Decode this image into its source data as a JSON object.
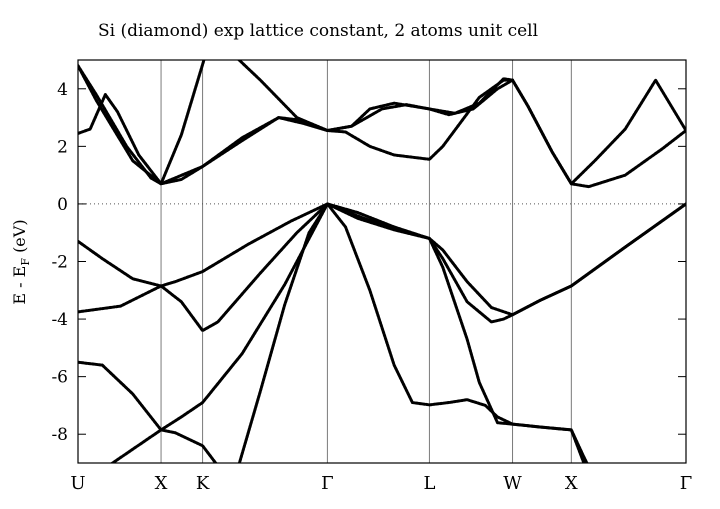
{
  "chart_data": {
    "type": "line",
    "title": "Si (diamond) exp lattice constant, 2 atoms unit cell",
    "ylabel": {
      "main": "E - E",
      "sub": "F",
      "unit": " (eV)"
    },
    "ylim": [
      -9,
      5
    ],
    "yticks": [
      4,
      2,
      0,
      -2,
      -4,
      -6,
      -8
    ],
    "x_range": [
      0,
      1
    ],
    "grid": false,
    "fermi_level": 0,
    "kpoints": [
      {
        "label": "U",
        "x": 0.0
      },
      {
        "label": "X",
        "x": 0.1366
      },
      {
        "label": "K",
        "x": 0.2049
      },
      {
        "label": "Γ",
        "x": 0.4102
      },
      {
        "label": "L",
        "x": 0.578
      },
      {
        "label": "W",
        "x": 0.7147
      },
      {
        "label": "X",
        "x": 0.8114
      },
      {
        "label": "Γ",
        "x": 1.0
      }
    ],
    "series": [
      {
        "values": [
          [
            0.0,
            -9.4
          ],
          [
            0.05,
            -9.1
          ],
          [
            0.1366,
            -7.85
          ],
          [
            0.17,
            -7.4
          ],
          [
            0.2049,
            -6.9
          ],
          [
            0.27,
            -5.2
          ],
          [
            0.34,
            -2.8
          ],
          [
            0.4102,
            0.0
          ],
          [
            0.46,
            -0.5
          ],
          [
            0.52,
            -0.9
          ],
          [
            0.578,
            -1.2
          ],
          [
            0.6,
            -1.6
          ],
          [
            0.64,
            -2.7
          ],
          [
            0.68,
            -3.6
          ],
          [
            0.7147,
            -3.85
          ],
          [
            0.76,
            -3.35
          ],
          [
            0.8114,
            -2.85
          ],
          [
            0.9,
            -1.5
          ],
          [
            1.0,
            0.0
          ]
        ]
      },
      {
        "values": [
          [
            0.0,
            -3.75
          ],
          [
            0.07,
            -3.55
          ],
          [
            0.1366,
            -2.85
          ],
          [
            0.17,
            -3.4
          ],
          [
            0.2049,
            -4.4
          ],
          [
            0.23,
            -4.1
          ],
          [
            0.3,
            -2.4
          ],
          [
            0.36,
            -1.0
          ],
          [
            0.4102,
            0.0
          ],
          [
            0.47,
            -0.5
          ],
          [
            0.53,
            -0.9
          ],
          [
            0.578,
            -1.2
          ],
          [
            0.6,
            -1.9
          ],
          [
            0.64,
            -3.4
          ],
          [
            0.68,
            -4.1
          ],
          [
            0.7,
            -4.0
          ],
          [
            0.7147,
            -3.85
          ],
          [
            0.76,
            -3.35
          ],
          [
            0.8114,
            -2.85
          ],
          [
            0.9,
            -1.5
          ],
          [
            1.0,
            0.0
          ]
        ]
      },
      {
        "values": [
          [
            0.0,
            -1.3
          ],
          [
            0.04,
            -1.9
          ],
          [
            0.09,
            -2.6
          ],
          [
            0.1366,
            -2.85
          ],
          [
            0.16,
            -2.7
          ],
          [
            0.2049,
            -2.35
          ],
          [
            0.28,
            -1.4
          ],
          [
            0.35,
            -0.6
          ],
          [
            0.4102,
            0.0
          ],
          [
            0.46,
            -0.3
          ],
          [
            0.52,
            -0.8
          ],
          [
            0.578,
            -1.2
          ],
          [
            0.6,
            -2.2
          ],
          [
            0.64,
            -4.7
          ],
          [
            0.66,
            -6.2
          ],
          [
            0.69,
            -7.6
          ],
          [
            0.7147,
            -7.65
          ],
          [
            0.76,
            -7.75
          ],
          [
            0.8114,
            -7.85
          ],
          [
            0.85,
            -10.0
          ]
        ]
      },
      {
        "values": [
          [
            0.0,
            -5.5
          ],
          [
            0.04,
            -5.6
          ],
          [
            0.09,
            -6.6
          ],
          [
            0.1366,
            -7.85
          ],
          [
            0.16,
            -7.95
          ],
          [
            0.2049,
            -8.4
          ],
          [
            0.23,
            -9.1
          ]
        ]
      },
      {
        "values": [
          [
            0.26,
            -9.4
          ],
          [
            0.3,
            -6.5
          ],
          [
            0.34,
            -3.5
          ],
          [
            0.38,
            -1.0
          ],
          [
            0.4102,
            0.0
          ],
          [
            0.44,
            -0.8
          ],
          [
            0.48,
            -3.0
          ],
          [
            0.52,
            -5.6
          ],
          [
            0.55,
            -6.9
          ],
          [
            0.578,
            -6.98
          ],
          [
            0.61,
            -6.9
          ],
          [
            0.64,
            -6.8
          ],
          [
            0.67,
            -7.0
          ],
          [
            0.69,
            -7.4
          ],
          [
            0.7147,
            -7.65
          ],
          [
            0.76,
            -7.75
          ],
          [
            0.8114,
            -7.85
          ],
          [
            0.83,
            -8.7
          ],
          [
            0.86,
            -10.0
          ]
        ]
      },
      {
        "values": [
          [
            0.0,
            2.45
          ],
          [
            0.02,
            2.6
          ],
          [
            0.045,
            3.8
          ],
          [
            0.065,
            3.2
          ],
          [
            0.1,
            1.7
          ],
          [
            0.1366,
            0.7
          ],
          [
            0.17,
            2.4
          ],
          [
            0.2,
            4.5
          ],
          [
            0.21,
            5.2
          ]
        ]
      },
      {
        "values": [
          [
            0.0,
            4.8
          ],
          [
            0.03,
            3.8
          ],
          [
            0.08,
            2.0
          ],
          [
            0.12,
            0.9
          ],
          [
            0.1366,
            0.7
          ],
          [
            0.17,
            0.85
          ],
          [
            0.2049,
            1.3
          ],
          [
            0.27,
            2.3
          ],
          [
            0.33,
            3.0
          ],
          [
            0.37,
            2.9
          ],
          [
            0.4102,
            2.55
          ],
          [
            0.45,
            2.7
          ],
          [
            0.48,
            3.3
          ],
          [
            0.52,
            3.5
          ],
          [
            0.578,
            3.3
          ],
          [
            0.61,
            3.1
          ],
          [
            0.65,
            3.3
          ],
          [
            0.69,
            4.0
          ],
          [
            0.7147,
            4.3
          ],
          [
            0.74,
            3.4
          ],
          [
            0.78,
            1.8
          ],
          [
            0.8114,
            0.7
          ],
          [
            0.84,
            0.6
          ],
          [
            0.9,
            1.0
          ],
          [
            0.96,
            1.9
          ],
          [
            1.0,
            2.55
          ]
        ]
      },
      {
        "values": [
          [
            0.0,
            4.8
          ],
          [
            0.03,
            3.6
          ],
          [
            0.09,
            1.5
          ],
          [
            0.1366,
            0.7
          ],
          [
            0.2049,
            1.3
          ],
          [
            0.27,
            2.2
          ],
          [
            0.33,
            3.0
          ],
          [
            0.37,
            2.8
          ],
          [
            0.4102,
            2.55
          ],
          [
            0.44,
            2.5
          ],
          [
            0.48,
            2.0
          ],
          [
            0.52,
            1.7
          ],
          [
            0.578,
            1.55
          ],
          [
            0.6,
            2.0
          ],
          [
            0.66,
            3.7
          ],
          [
            0.7,
            4.3
          ],
          [
            0.7147,
            4.3
          ],
          [
            0.74,
            3.4
          ],
          [
            0.78,
            1.8
          ],
          [
            0.8114,
            0.7
          ],
          [
            0.85,
            1.5
          ],
          [
            0.9,
            2.6
          ],
          [
            0.95,
            4.3
          ],
          [
            1.0,
            2.55
          ]
        ]
      },
      {
        "values": [
          [
            0.255,
            5.2
          ],
          [
            0.3,
            4.3
          ],
          [
            0.36,
            3.0
          ],
          [
            0.4102,
            2.55
          ],
          [
            0.45,
            2.7
          ],
          [
            0.5,
            3.3
          ],
          [
            0.54,
            3.45
          ],
          [
            0.578,
            3.3
          ],
          [
            0.62,
            3.15
          ],
          [
            0.66,
            3.5
          ],
          [
            0.7,
            4.35
          ],
          [
            0.7147,
            4.3
          ]
        ]
      }
    ]
  }
}
